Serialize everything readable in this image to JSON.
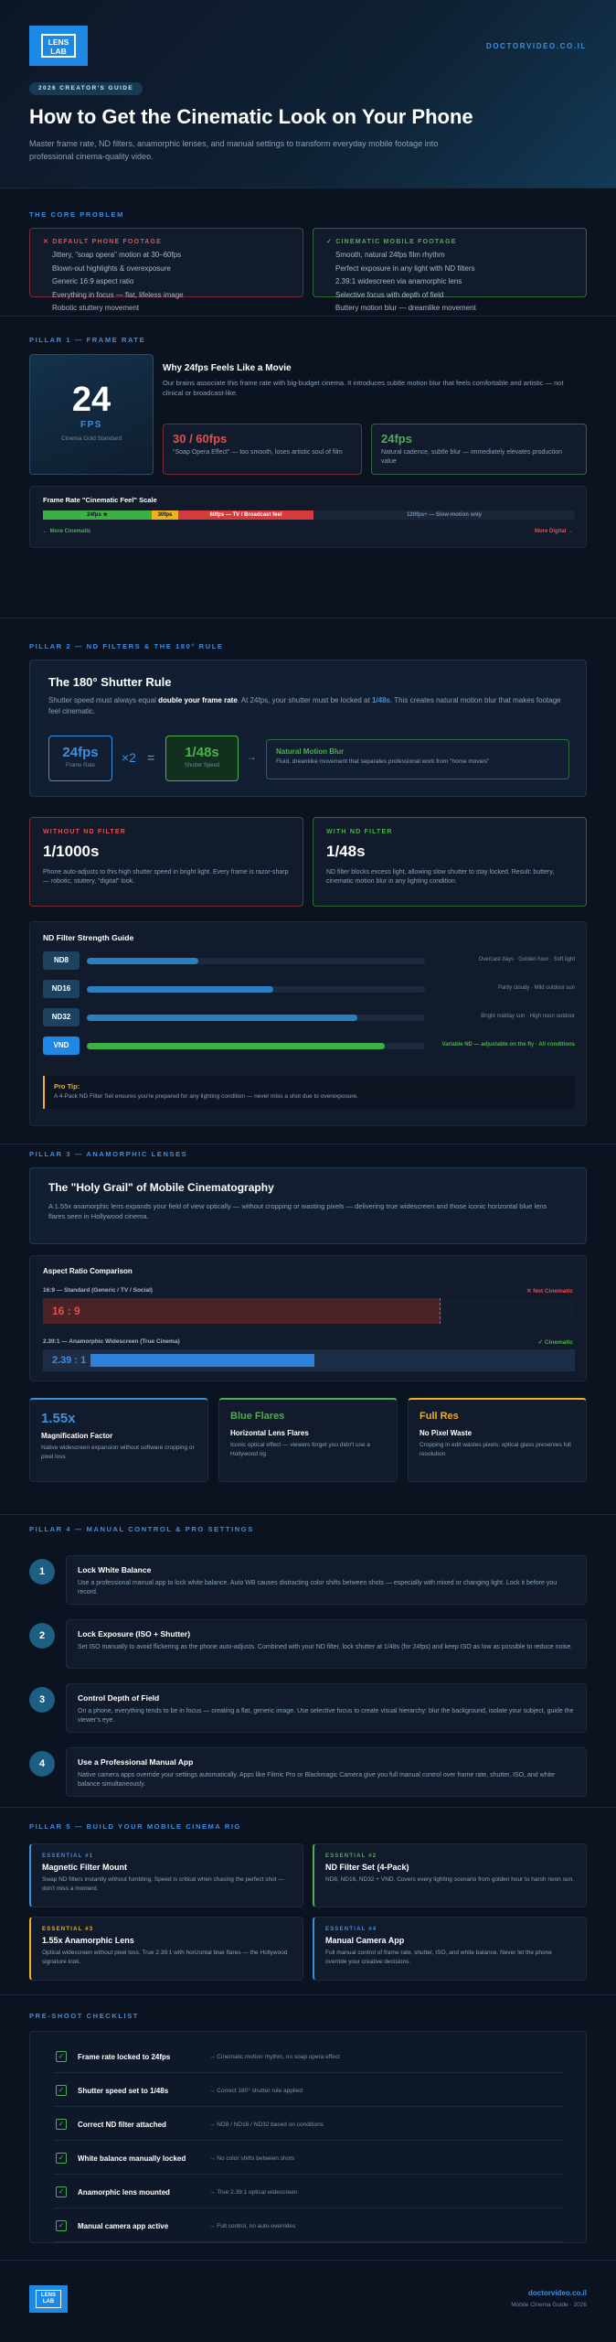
{
  "header": {
    "logo_text": "LENS LAB",
    "site": "DOCTORVIDEO.CO.IL",
    "badge": "2026 CREATOR'S GUIDE",
    "title": "How to Get the Cinematic Look on Your Phone",
    "subtitle": "Master frame rate, ND filters, anamorphic lenses, and manual settings to transform everyday mobile footage into professional cinema-quality video."
  },
  "problem": {
    "label": "THE CORE PROBLEM",
    "bad": {
      "title": "✕ DEFAULT PHONE FOOTAGE",
      "items": [
        "Jittery, \"soap opera\" motion at 30–60fps",
        "Blown-out highlights & overexposure",
        "Generic 16:9 aspect ratio",
        "Everything in focus — flat, lifeless image",
        "Robotic stuttery movement"
      ]
    },
    "good": {
      "title": "✓ CINEMATIC MOBILE FOOTAGE",
      "items": [
        "Smooth, natural 24fps film rhythm",
        "Perfect exposure in any light with ND filters",
        "2.39:1 widescreen via anamorphic lens",
        "Selective focus with depth of field",
        "Buttery motion blur — dreamlike movement"
      ]
    }
  },
  "p1": {
    "label": "PILLAR 1 — FRAME RATE",
    "big": "24",
    "fps": "FPS",
    "big_caption": "Cinema Gold Standard",
    "why_title": "Why 24fps Feels Like a Movie",
    "why_text": "Our brains associate this frame rate with big-budget cinema. It introduces subtle motion blur that feels comfortable and artistic — not clinical or broadcast-like.",
    "bad_title": "30 / 60fps",
    "bad_text": "\"Soap Opera Effect\" — too smooth, loses artistic soul of film",
    "good_title": "24fps",
    "good_text": "Natural cadence, subtle blur — immediately elevates production value",
    "scale_title": "Frame Rate \"Cinematic Feel\" Scale",
    "seg1": "24fps ★",
    "seg2": "30fps",
    "seg3": "60fps — TV / Broadcast feel",
    "seg4": "120fps+ — Slow-motion only",
    "left": "← More Cinematic",
    "right": "More Digital →"
  },
  "p2": {
    "label": "PILLAR 2 — ND FILTERS & THE 180° RULE",
    "rule_title": "The 180° Shutter Rule",
    "rule_text_a": "Shutter speed must always equal ",
    "rule_text_b": "double your frame rate",
    "rule_text_c": ". At 24fps, your shutter must be locked at ",
    "rule_text_d": "1/48s",
    "rule_text_e": ". This creates natural motion blur that makes footage feel cinematic.",
    "fr": "24fps",
    "fr_cap": "Frame Rate",
    "x2": "×2",
    "eq": "=",
    "ss": "1/48s",
    "ss_cap": "Shutter Speed",
    "arrow": "→",
    "blur_title": "Natural Motion Blur",
    "blur_text": "Fluid, dreamlike movement that separates professional work from \"home movies\"",
    "without_label": "WITHOUT ND FILTER",
    "without_val": "1/1000s",
    "without_text": "Phone auto-adjusts to this high shutter speed in bright light. Every frame is razor-sharp — robotic, stuttery, \"digital\" look.",
    "with_label": "WITH ND FILTER",
    "with_val": "1/48s",
    "with_text": "ND filter blocks excess light, allowing slow shutter to stay locked. Result: buttery, cinematic motion blur in any lighting condition.",
    "nd_title": "ND Filter Strength Guide",
    "nd": [
      {
        "name": "ND8",
        "note": "Overcast days · Golden hour · Soft light",
        "v": 0.33
      },
      {
        "name": "ND16",
        "note": "Partly cloudy · Mild outdoor sun",
        "v": 0.55
      },
      {
        "name": "ND32",
        "note": "Bright midday sun · High noon outdoor",
        "v": 0.8
      },
      {
        "name": "VND",
        "note": "Variable ND — adjustable on the fly · All conditions",
        "v": 0.88
      }
    ],
    "tip_title": "Pro Tip:",
    "tip_text": "A 4-Pack ND Filter Set ensures you're prepared for any lighting condition — never miss a shot due to overexposure."
  },
  "p3": {
    "label": "PILLAR 3 — ANAMORPHIC LENSES",
    "grail_title": "The \"Holy Grail\" of Mobile Cinematography",
    "grail_text": "A 1.55x anamorphic lens expands your field of view optically — without cropping or wasting pixels — delivering true widescreen and those iconic horizontal blue lens flares seen in Hollywood cinema.",
    "ar_title": "Aspect Ratio Comparison",
    "ar1_label": "16:9 — Standard (Generic / TV / Social)",
    "ar1_tag": "✕ Not Cinematic",
    "ar1_val": "16 : 9",
    "ar2_label": "2.39:1 — Anamorphic Widescreen (True Cinema)",
    "ar2_tag": "✓ Cinematic",
    "ar2_val": "2.39 : 1",
    "cards": [
      {
        "big": "1.55x",
        "title": "Magnification Factor",
        "text": "Native widescreen expansion without software cropping or pixel loss",
        "color": "#3d8fe0"
      },
      {
        "big": "Blue Flares",
        "title": "Horizontal Lens Flares",
        "text": "Iconic optical effect — viewers forget you didn't use a Hollywood rig",
        "color": "#4caf50"
      },
      {
        "big": "Full Res",
        "title": "No Pixel Waste",
        "text": "Cropping in edit wastes pixels; optical glass preserves full resolution",
        "color": "#f0b020"
      }
    ]
  },
  "p4": {
    "label": "PILLAR 4 — MANUAL CONTROL & PRO SETTINGS",
    "steps": [
      {
        "n": "1",
        "title": "Lock White Balance",
        "text": "Use a professional manual app to lock white balance. Auto WB causes distracting color shifts between shots — especially with mixed or changing light. Lock it before you record."
      },
      {
        "n": "2",
        "title": "Lock Exposure (ISO + Shutter)",
        "text": "Set ISO manually to avoid flickering as the phone auto-adjusts. Combined with your ND filter, lock shutter at 1/48s (for 24fps) and keep ISO as low as possible to reduce noise."
      },
      {
        "n": "3",
        "title": "Control Depth of Field",
        "text": "On a phone, everything tends to be in focus — creating a flat, generic image. Use selective focus to create visual hierarchy: blur the background, isolate your subject, guide the viewer's eye."
      },
      {
        "n": "4",
        "title": "Use a Professional Manual App",
        "text": "Native camera apps override your settings automatically. Apps like Filmic Pro or Blackmagic Camera give you full manual control over frame rate, shutter, ISO, and white balance simultaneously."
      }
    ]
  },
  "p5": {
    "label": "PILLAR 5 — BUILD YOUR MOBILE CINEMA RIG",
    "items": [
      {
        "tag": "ESSENTIAL #1",
        "title": "Magnetic Filter Mount",
        "text": "Swap ND filters instantly without fumbling. Speed is critical when chasing the perfect shot — don't miss a moment.",
        "color": "#3d8fe0"
      },
      {
        "tag": "ESSENTIAL #2",
        "title": "ND Filter Set (4-Pack)",
        "text": "ND8, ND16, ND32 + VND. Covers every lighting scenario from golden hour to harsh noon sun.",
        "color": "#4caf50"
      },
      {
        "tag": "ESSENTIAL #3",
        "title": "1.55x Anamorphic Lens",
        "text": "Optical widescreen without pixel loss. True 2.39:1 with horizontal blue flares — the Hollywood signature look.",
        "color": "#f0b020"
      },
      {
        "tag": "ESSENTIAL #4",
        "title": "Manual Camera App",
        "text": "Full manual control of frame rate, shutter, ISO, and white balance. Never let the phone override your creative decisions.",
        "color": "#3d8fe0"
      }
    ]
  },
  "checklist": {
    "label": "PRE-SHOOT CHECKLIST",
    "items": [
      {
        "t": "Frame rate locked to 24fps",
        "d": "→ Cinematic motion rhythm, no soap opera effect"
      },
      {
        "t": "Shutter speed set to 1/48s",
        "d": "→ Correct 180° shutter rule applied"
      },
      {
        "t": "Correct ND filter attached",
        "d": "→ ND8 / ND16 / ND32 based on conditions"
      },
      {
        "t": "White balance manually locked",
        "d": "→ No color shifts between shots"
      },
      {
        "t": "Anamorphic lens mounted",
        "d": "→ True 2.39:1 optical widescreen"
      },
      {
        "t": "Manual camera app active",
        "d": "→ Full control, no auto-overrides"
      }
    ]
  },
  "footer": {
    "logo_text": "LENS LAB",
    "site": "doctorvideo.co.il",
    "caption": "Mobile Cinema Guide · 2026"
  }
}
